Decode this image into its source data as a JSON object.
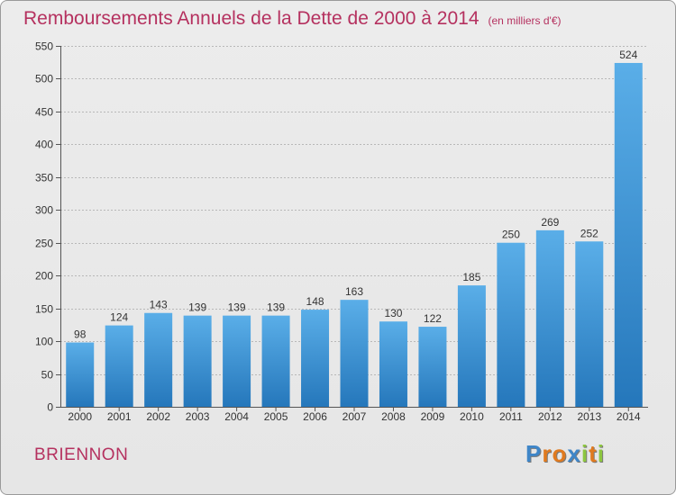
{
  "chart_data": {
    "type": "bar",
    "title": "Remboursements Annuels de la Dette de 2000 à 2014",
    "subtitle": "(en milliers d'€)",
    "categories": [
      "2000",
      "2001",
      "2002",
      "2003",
      "2004",
      "2005",
      "2006",
      "2007",
      "2008",
      "2009",
      "2010",
      "2011",
      "2012",
      "2013",
      "2014"
    ],
    "values": [
      98,
      124,
      143,
      139,
      139,
      139,
      148,
      163,
      130,
      122,
      185,
      250,
      269,
      252,
      524
    ],
    "ylim": [
      0,
      550
    ],
    "yticks": [
      0,
      50,
      100,
      150,
      200,
      250,
      300,
      350,
      400,
      450,
      500,
      550
    ],
    "xlabel": "",
    "ylabel": "",
    "grid": true,
    "legend": "none",
    "colors": {
      "bar_light": "#5aaee8",
      "bar_dark": "#2577bb",
      "title": "#b5315f"
    }
  },
  "footer": {
    "commune": "BRIENNON",
    "logo_letters": [
      {
        "ch": "P",
        "color": "#3f86c8"
      },
      {
        "ch": "r",
        "color": "#e07a1f"
      },
      {
        "ch": "o",
        "color": "#e07a1f"
      },
      {
        "ch": "x",
        "color": "#3f86c8"
      },
      {
        "ch": "i",
        "color": "#8dc63f"
      },
      {
        "ch": "t",
        "color": "#e07a1f"
      },
      {
        "ch": "i",
        "color": "#8dc63f"
      }
    ]
  }
}
